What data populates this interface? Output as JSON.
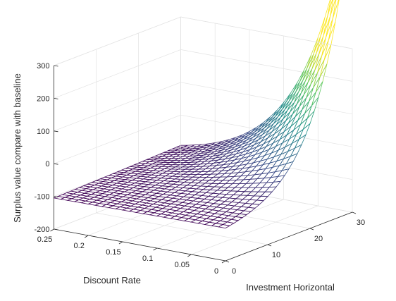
{
  "chart_data": {
    "type": "surface",
    "title": "",
    "xlabel": "Investment Horizontal",
    "ylabel": "Discount Rate",
    "zlabel": "Surplus value compare with baseline",
    "xlim": [
      0,
      30
    ],
    "ylim": [
      0,
      0.25
    ],
    "zlim": [
      -200,
      300
    ],
    "xticks": [
      "0",
      "10",
      "20",
      "30"
    ],
    "yticks": [
      "0",
      "0.05",
      "0.1",
      "0.15",
      "0.2",
      "0.25"
    ],
    "zticks": [
      "-200",
      "-100",
      "0",
      "100",
      "200",
      "300"
    ],
    "grid": true,
    "colormap": [
      "#440154",
      "#3b528b",
      "#21918c",
      "#5ec962",
      "#fde725"
    ],
    "corner_values": [
      {
        "investment_horizon": 0,
        "discount_rate": 0.25,
        "z": -105
      },
      {
        "investment_horizon": 0,
        "discount_rate": 0,
        "z": -100
      },
      {
        "investment_horizon": 30,
        "discount_rate": 0.25,
        "z": 28
      },
      {
        "investment_horizon": 30,
        "discount_rate": 0,
        "z": 290
      }
    ],
    "mesh": {
      "nx": 31,
      "ny": 26
    }
  }
}
